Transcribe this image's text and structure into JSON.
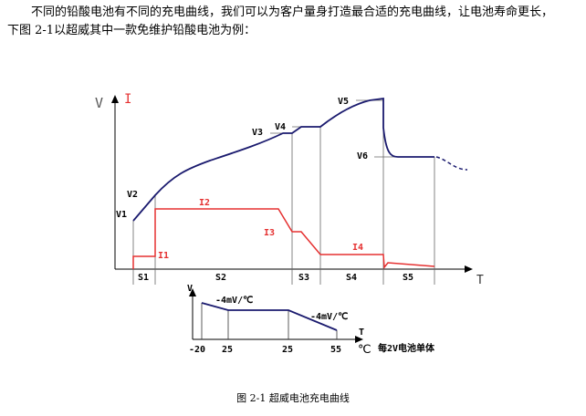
{
  "text": {
    "line1": "不同的铅酸电池有不同的充电曲线，我们可以为客户量身打造最合适的充电曲线，让电池寿命更长，",
    "line2": "下图 2-1以超威其中一款免维护铅酸电池为例："
  },
  "figure": {
    "caption": "图 2-1  超威电池充电曲线",
    "axis_v": "V",
    "axis_i": "I",
    "axis_t": "T",
    "voltage_labels": [
      "V1",
      "V2",
      "V3",
      "V4",
      "V5",
      "V6"
    ],
    "current_labels": [
      "I1",
      "I2",
      "I3",
      "I4"
    ],
    "stage_labels": [
      "S1",
      "S2",
      "S3",
      "S4",
      "S5"
    ],
    "colors": {
      "voltage": "#1a1a6e",
      "current": "#e53030",
      "axes": "#000000",
      "guides": "#666666"
    },
    "inset": {
      "v_label": "V",
      "t_label": "T",
      "unit_label": "℃",
      "annotation_left": "-4mV/℃",
      "annotation_right": "-4mV/℃",
      "ticks": [
        "-20",
        "25",
        "25",
        "55"
      ],
      "note": "每2V电池单体"
    }
  }
}
